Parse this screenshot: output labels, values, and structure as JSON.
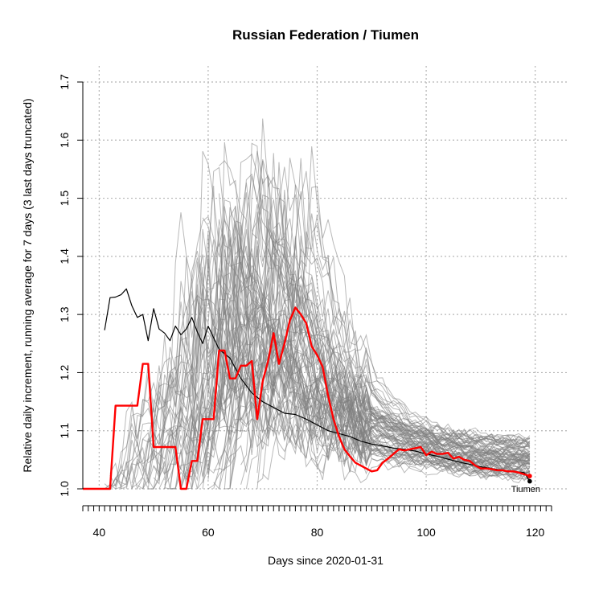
{
  "chart_data": {
    "type": "line",
    "title": "Russian Federation / Tiumen",
    "xlabel": "Days since 2020-01-31",
    "ylabel": "Relative daily increment, running average for 7 days (3 last days truncated)",
    "xlim": [
      37,
      123
    ],
    "ylim": [
      1.0,
      1.7
    ],
    "x_ticks": [
      40,
      60,
      80,
      100,
      120
    ],
    "y_ticks": [
      1.0,
      1.1,
      1.2,
      1.3,
      1.4,
      1.5,
      1.6,
      1.7
    ],
    "x_minor_tick_step": 1,
    "x_grid": [
      40,
      60,
      80,
      100,
      120
    ],
    "y_grid": [
      1.0,
      1.1,
      1.2,
      1.3,
      1.4,
      1.5,
      1.6,
      1.7
    ],
    "grid": true,
    "background_series_color": "#808080",
    "background_series_count": 80,
    "series": [
      {
        "name": "Russia",
        "color": "#000000",
        "width": 1.2,
        "x": [
          41,
          42,
          43,
          44,
          45,
          46,
          47,
          48,
          49,
          50,
          51,
          52,
          53,
          54,
          55,
          56,
          57,
          58,
          59,
          60,
          62,
          64,
          66,
          68,
          70,
          72,
          74,
          76,
          78,
          80,
          82,
          84,
          86,
          88,
          90,
          92,
          94,
          96,
          98,
          100,
          102,
          104,
          106,
          108,
          110,
          112,
          114,
          116,
          118,
          119
        ],
        "y": [
          1.273,
          1.329,
          1.33,
          1.334,
          1.344,
          1.315,
          1.295,
          1.3,
          1.255,
          1.31,
          1.275,
          1.268,
          1.255,
          1.28,
          1.265,
          1.275,
          1.295,
          1.27,
          1.25,
          1.28,
          1.24,
          1.225,
          1.19,
          1.165,
          1.15,
          1.14,
          1.13,
          1.128,
          1.12,
          1.11,
          1.1,
          1.095,
          1.09,
          1.082,
          1.077,
          1.074,
          1.07,
          1.068,
          1.065,
          1.06,
          1.056,
          1.051,
          1.046,
          1.042,
          1.038,
          1.035,
          1.032,
          1.03,
          1.028,
          1.013
        ]
      },
      {
        "name": "Tiumen",
        "color": "#ff0000",
        "width": 2.4,
        "x": [
          37,
          40,
          42,
          43,
          44,
          45,
          46,
          47,
          48,
          49,
          50,
          51,
          52,
          53,
          54,
          55,
          56,
          57,
          58,
          59,
          60,
          61,
          62,
          63,
          64,
          65,
          66,
          67,
          68,
          69,
          70,
          71,
          72,
          73,
          74,
          75,
          76,
          77,
          78,
          79,
          80,
          81,
          82,
          83,
          84,
          85,
          86,
          87,
          88,
          89,
          90,
          91,
          92,
          93,
          94,
          95,
          96,
          97,
          98,
          99,
          100,
          101,
          102,
          103,
          104,
          105,
          106,
          107,
          108,
          109,
          110,
          111,
          112,
          113,
          114,
          115,
          116,
          117,
          118,
          119
        ],
        "y": [
          1.0,
          1.0,
          1.0,
          1.143,
          1.143,
          1.143,
          1.143,
          1.143,
          1.215,
          1.215,
          1.072,
          1.072,
          1.072,
          1.072,
          1.072,
          1.0,
          1.0,
          1.048,
          1.048,
          1.12,
          1.12,
          1.12,
          1.238,
          1.238,
          1.19,
          1.19,
          1.212,
          1.212,
          1.22,
          1.12,
          1.185,
          1.22,
          1.268,
          1.215,
          1.25,
          1.29,
          1.312,
          1.3,
          1.285,
          1.245,
          1.23,
          1.21,
          1.16,
          1.12,
          1.09,
          1.068,
          1.056,
          1.045,
          1.04,
          1.035,
          1.03,
          1.032,
          1.045,
          1.052,
          1.06,
          1.068,
          1.066,
          1.068,
          1.07,
          1.072,
          1.058,
          1.064,
          1.06,
          1.06,
          1.062,
          1.052,
          1.055,
          1.05,
          1.048,
          1.04,
          1.035,
          1.035,
          1.034,
          1.032,
          1.032,
          1.03,
          1.03,
          1.028,
          1.025,
          1.022
        ]
      }
    ],
    "end_label": "Tiumen"
  }
}
